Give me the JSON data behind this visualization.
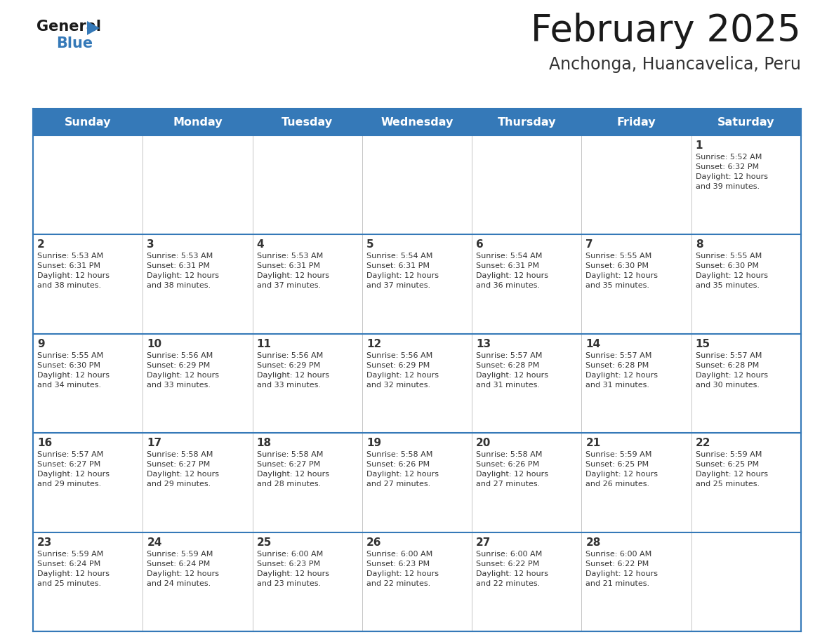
{
  "title": "February 2025",
  "subtitle": "Anchonga, Huancavelica, Peru",
  "header_color": "#3579b8",
  "header_text_color": "#ffffff",
  "days_of_week": [
    "Sunday",
    "Monday",
    "Tuesday",
    "Wednesday",
    "Thursday",
    "Friday",
    "Saturday"
  ],
  "day_number_color": "#333333",
  "info_text_color": "#333333",
  "grid_line_color": "#3579b8",
  "weeks": [
    [
      {
        "day": null,
        "info": null
      },
      {
        "day": null,
        "info": null
      },
      {
        "day": null,
        "info": null
      },
      {
        "day": null,
        "info": null
      },
      {
        "day": null,
        "info": null
      },
      {
        "day": null,
        "info": null
      },
      {
        "day": 1,
        "info": "Sunrise: 5:52 AM\nSunset: 6:32 PM\nDaylight: 12 hours\nand 39 minutes."
      }
    ],
    [
      {
        "day": 2,
        "info": "Sunrise: 5:53 AM\nSunset: 6:31 PM\nDaylight: 12 hours\nand 38 minutes."
      },
      {
        "day": 3,
        "info": "Sunrise: 5:53 AM\nSunset: 6:31 PM\nDaylight: 12 hours\nand 38 minutes."
      },
      {
        "day": 4,
        "info": "Sunrise: 5:53 AM\nSunset: 6:31 PM\nDaylight: 12 hours\nand 37 minutes."
      },
      {
        "day": 5,
        "info": "Sunrise: 5:54 AM\nSunset: 6:31 PM\nDaylight: 12 hours\nand 37 minutes."
      },
      {
        "day": 6,
        "info": "Sunrise: 5:54 AM\nSunset: 6:31 PM\nDaylight: 12 hours\nand 36 minutes."
      },
      {
        "day": 7,
        "info": "Sunrise: 5:55 AM\nSunset: 6:30 PM\nDaylight: 12 hours\nand 35 minutes."
      },
      {
        "day": 8,
        "info": "Sunrise: 5:55 AM\nSunset: 6:30 PM\nDaylight: 12 hours\nand 35 minutes."
      }
    ],
    [
      {
        "day": 9,
        "info": "Sunrise: 5:55 AM\nSunset: 6:30 PM\nDaylight: 12 hours\nand 34 minutes."
      },
      {
        "day": 10,
        "info": "Sunrise: 5:56 AM\nSunset: 6:29 PM\nDaylight: 12 hours\nand 33 minutes."
      },
      {
        "day": 11,
        "info": "Sunrise: 5:56 AM\nSunset: 6:29 PM\nDaylight: 12 hours\nand 33 minutes."
      },
      {
        "day": 12,
        "info": "Sunrise: 5:56 AM\nSunset: 6:29 PM\nDaylight: 12 hours\nand 32 minutes."
      },
      {
        "day": 13,
        "info": "Sunrise: 5:57 AM\nSunset: 6:28 PM\nDaylight: 12 hours\nand 31 minutes."
      },
      {
        "day": 14,
        "info": "Sunrise: 5:57 AM\nSunset: 6:28 PM\nDaylight: 12 hours\nand 31 minutes."
      },
      {
        "day": 15,
        "info": "Sunrise: 5:57 AM\nSunset: 6:28 PM\nDaylight: 12 hours\nand 30 minutes."
      }
    ],
    [
      {
        "day": 16,
        "info": "Sunrise: 5:57 AM\nSunset: 6:27 PM\nDaylight: 12 hours\nand 29 minutes."
      },
      {
        "day": 17,
        "info": "Sunrise: 5:58 AM\nSunset: 6:27 PM\nDaylight: 12 hours\nand 29 minutes."
      },
      {
        "day": 18,
        "info": "Sunrise: 5:58 AM\nSunset: 6:27 PM\nDaylight: 12 hours\nand 28 minutes."
      },
      {
        "day": 19,
        "info": "Sunrise: 5:58 AM\nSunset: 6:26 PM\nDaylight: 12 hours\nand 27 minutes."
      },
      {
        "day": 20,
        "info": "Sunrise: 5:58 AM\nSunset: 6:26 PM\nDaylight: 12 hours\nand 27 minutes."
      },
      {
        "day": 21,
        "info": "Sunrise: 5:59 AM\nSunset: 6:25 PM\nDaylight: 12 hours\nand 26 minutes."
      },
      {
        "day": 22,
        "info": "Sunrise: 5:59 AM\nSunset: 6:25 PM\nDaylight: 12 hours\nand 25 minutes."
      }
    ],
    [
      {
        "day": 23,
        "info": "Sunrise: 5:59 AM\nSunset: 6:24 PM\nDaylight: 12 hours\nand 25 minutes."
      },
      {
        "day": 24,
        "info": "Sunrise: 5:59 AM\nSunset: 6:24 PM\nDaylight: 12 hours\nand 24 minutes."
      },
      {
        "day": 25,
        "info": "Sunrise: 6:00 AM\nSunset: 6:23 PM\nDaylight: 12 hours\nand 23 minutes."
      },
      {
        "day": 26,
        "info": "Sunrise: 6:00 AM\nSunset: 6:23 PM\nDaylight: 12 hours\nand 22 minutes."
      },
      {
        "day": 27,
        "info": "Sunrise: 6:00 AM\nSunset: 6:22 PM\nDaylight: 12 hours\nand 22 minutes."
      },
      {
        "day": 28,
        "info": "Sunrise: 6:00 AM\nSunset: 6:22 PM\nDaylight: 12 hours\nand 21 minutes."
      },
      {
        "day": null,
        "info": null
      }
    ]
  ]
}
